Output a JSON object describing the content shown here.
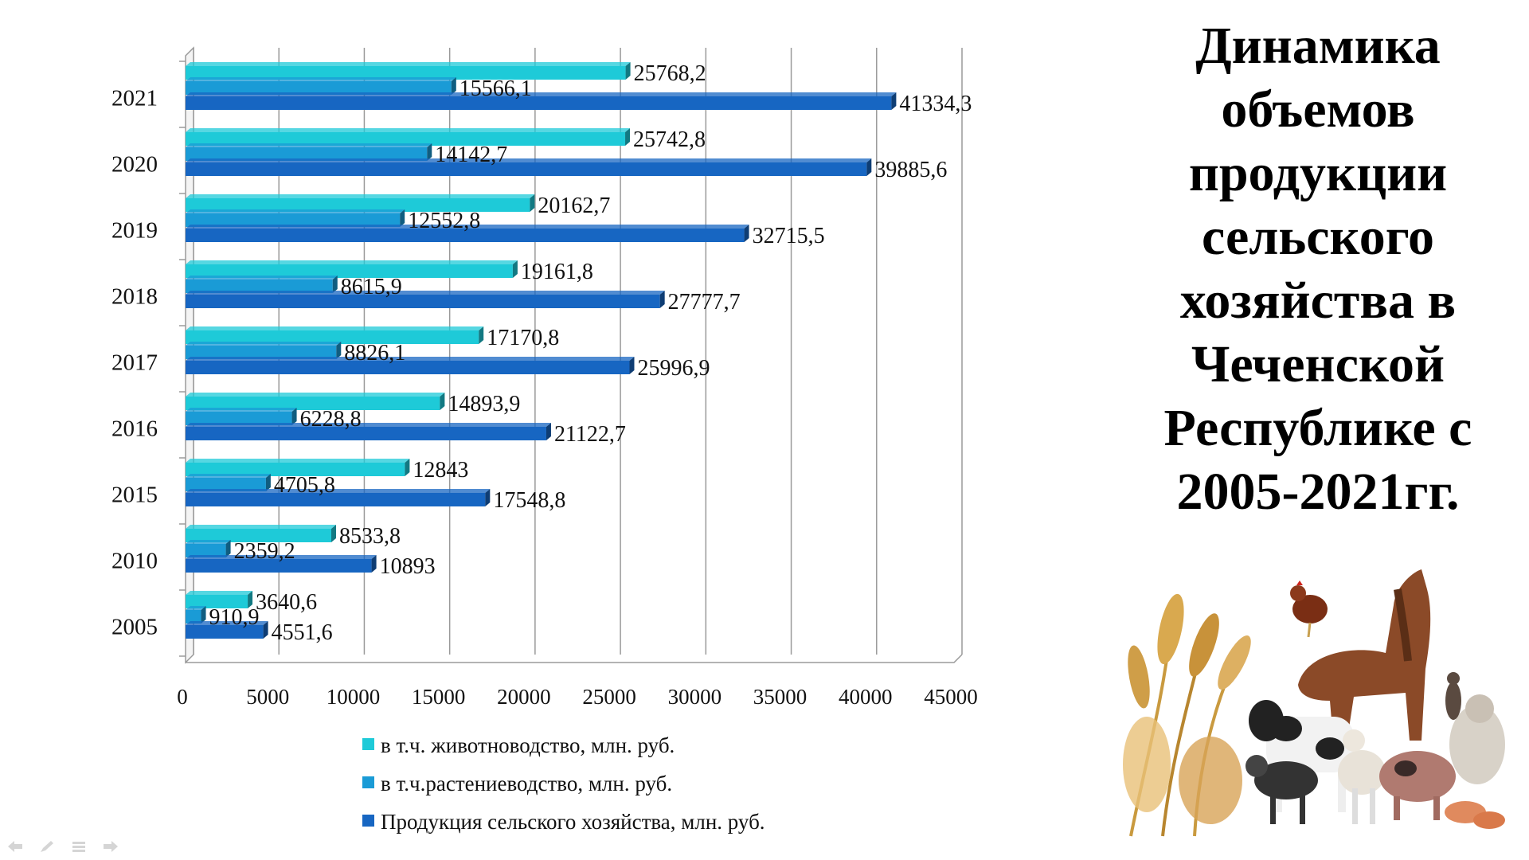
{
  "title": "Динамика объемов продукции сельского хозяйства в Чеченской Республике с 2005-2021гг.",
  "colors": {
    "livestock": "#1ECAD8",
    "crops": "#1A9BD6",
    "total": "#1766C2",
    "grid": "#9A9A9A"
  },
  "chart_data": {
    "type": "bar",
    "orientation": "horizontal",
    "categories": [
      "2021",
      "2020",
      "2019",
      "2018",
      "2017",
      "2016",
      "2015",
      "2010",
      "2005"
    ],
    "series": [
      {
        "name": "в т.ч. животноводство, млн. руб.",
        "values": [
          25768.2,
          25742.8,
          20162.7,
          19161.8,
          17170.8,
          14893.9,
          12843,
          8533.8,
          3640.6
        ],
        "labels": [
          "25768,2",
          "25742,8",
          "20162,7",
          "19161,8",
          "17170,8",
          "14893,9",
          "12843",
          "8533,8",
          "3640,6"
        ]
      },
      {
        "name": "в т.ч.растениеводство, млн. руб.",
        "values": [
          15566.1,
          14142.7,
          12552.8,
          8615.9,
          8826.1,
          6228.8,
          4705.8,
          2359.2,
          910.9
        ],
        "labels": [
          "15566,1",
          "14142,7",
          "12552,8",
          "8615,9",
          "8826,1",
          "6228,8",
          "4705,8",
          "2359,2",
          "910,9"
        ]
      },
      {
        "name": "Продукция сельского хозяйства, млн. руб.",
        "values": [
          41334.3,
          39885.6,
          32715.5,
          27777.7,
          25996.9,
          21122.7,
          17548.8,
          10893,
          4551.6
        ],
        "labels": [
          "41334,3",
          "39885,6",
          "32715,5",
          "27777,7",
          "25996,9",
          "21122,7",
          "17548,8",
          "10893",
          "4551,6"
        ]
      }
    ],
    "xlim": [
      0,
      45000
    ],
    "xticks": [
      0,
      5000,
      10000,
      15000,
      20000,
      25000,
      30000,
      35000,
      40000,
      45000
    ],
    "grid": true,
    "legend": "bottom"
  }
}
